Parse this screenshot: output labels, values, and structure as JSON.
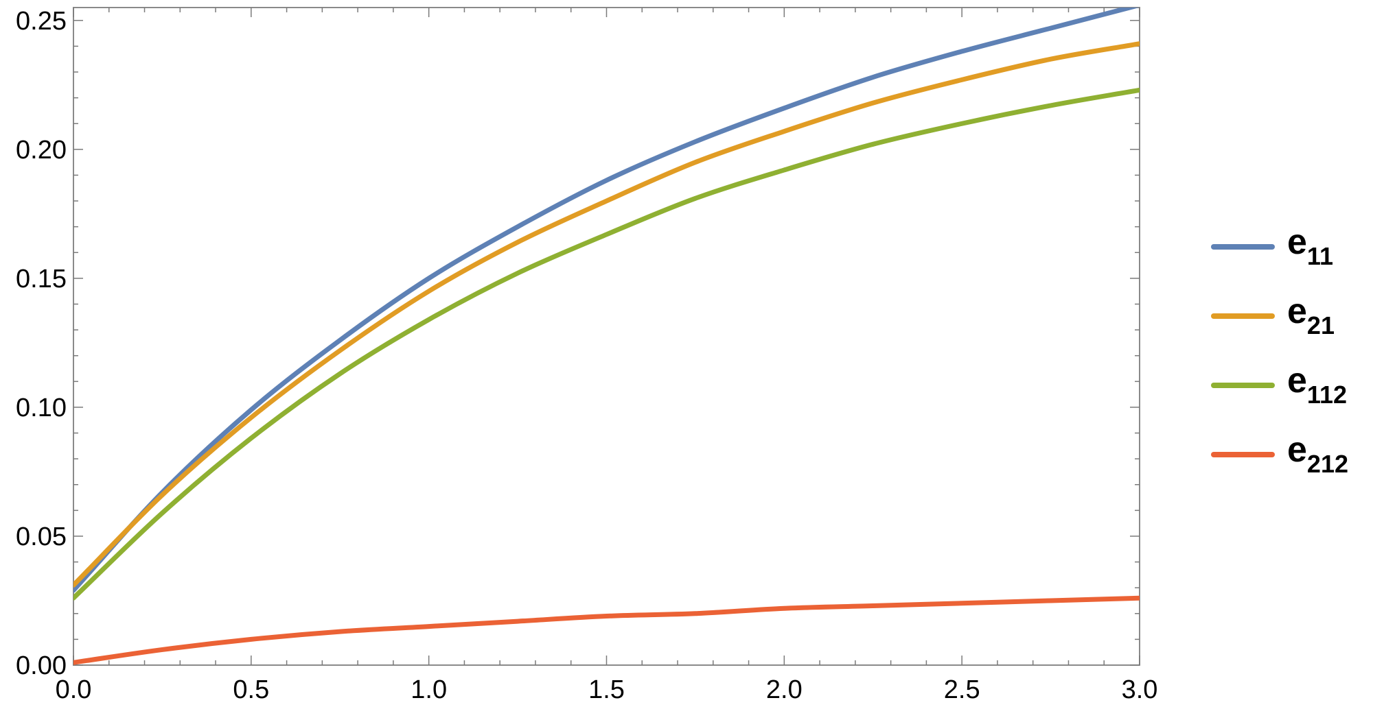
{
  "chart_data": {
    "type": "line",
    "title": "",
    "xlabel": "",
    "ylabel": "",
    "xlim": [
      0,
      3
    ],
    "ylim": [
      0,
      0.255
    ],
    "x_ticks": [
      "0.0",
      "0.5",
      "1.0",
      "1.5",
      "2.0",
      "2.5",
      "3.0"
    ],
    "y_ticks": [
      "0.00",
      "0.05",
      "0.10",
      "0.15",
      "0.20",
      "0.25"
    ],
    "grid": false,
    "legend_position": "right",
    "x": [
      0,
      0.25,
      0.5,
      0.75,
      1.0,
      1.25,
      1.5,
      1.75,
      2.0,
      2.25,
      2.5,
      2.75,
      3.0
    ],
    "series": [
      {
        "name": "e11",
        "label_base": "e",
        "label_sub": "11",
        "color": "#5E81B5",
        "values": [
          0.029,
          0.067,
          0.099,
          0.126,
          0.15,
          0.17,
          0.188,
          0.203,
          0.216,
          0.228,
          0.238,
          0.247,
          0.256
        ]
      },
      {
        "name": "e21",
        "label_base": "e",
        "label_sub": "21",
        "color": "#E19C24",
        "values": [
          0.031,
          0.066,
          0.096,
          0.122,
          0.145,
          0.164,
          0.18,
          0.195,
          0.207,
          0.218,
          0.227,
          0.235,
          0.241
        ]
      },
      {
        "name": "e112",
        "label_base": "e",
        "label_sub": "112",
        "color": "#8FB032",
        "values": [
          0.026,
          0.059,
          0.088,
          0.113,
          0.134,
          0.152,
          0.167,
          0.181,
          0.192,
          0.202,
          0.21,
          0.217,
          0.223
        ]
      },
      {
        "name": "e212",
        "label_base": "e",
        "label_sub": "212",
        "color": "#EB6235",
        "values": [
          0.001,
          0.006,
          0.01,
          0.013,
          0.015,
          0.017,
          0.019,
          0.02,
          0.022,
          0.023,
          0.024,
          0.025,
          0.026
        ]
      }
    ]
  }
}
